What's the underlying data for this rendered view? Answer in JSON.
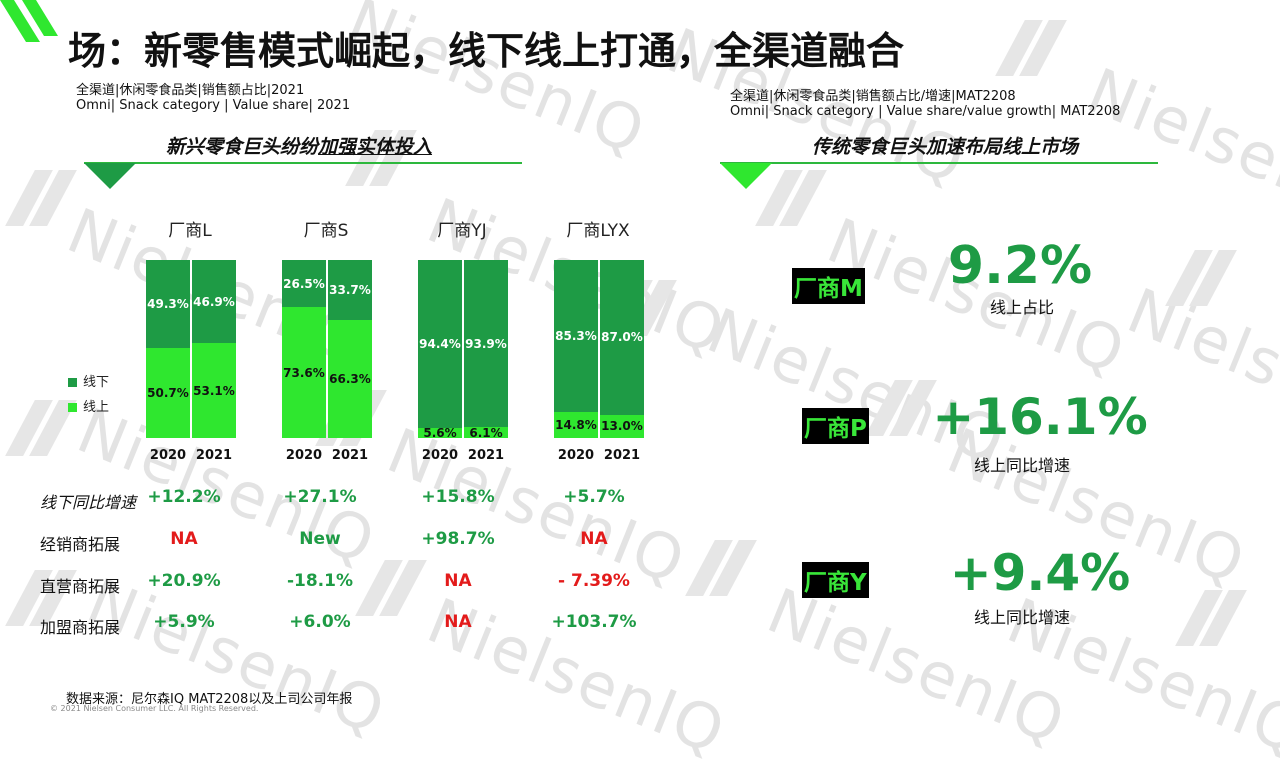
{
  "title": "场：新零售模式崛起，线下线上打通，全渠道融合",
  "left": {
    "subtitle_cn": "全渠道|休闲零食品类|销售额占比|2021",
    "subtitle_en": "Omni| Snack category | Value share| 2021",
    "section_title_a": "新兴零食巨头纷纷",
    "section_title_b": "加强实体投入"
  },
  "right": {
    "subtitle_cn": "全渠道|休闲零食品类|销售额占比/增速|MAT2208",
    "subtitle_en": "Omni| Snack category | Value share/value growth| MAT2208",
    "section_title": "传统零食巨头加速布局线上市场",
    "kpis": [
      {
        "vendor": "厂商M",
        "value": "9.2%",
        "caption": "线上占比"
      },
      {
        "vendor": "厂商P",
        "value": "+16.1%",
        "caption": "线上同比增速"
      },
      {
        "vendor": "厂商Y",
        "value": "+9.4%",
        "caption": "线上同比增速"
      }
    ]
  },
  "chart_data": {
    "type": "bar",
    "stacked": true,
    "percent_stacked": true,
    "groups": [
      "厂商L",
      "厂商S",
      "厂商YJ",
      "厂商LYX"
    ],
    "categories": [
      "2020",
      "2021"
    ],
    "series": [
      {
        "name": "线下",
        "color": "#1e9b45",
        "values": [
          [
            49.3,
            46.9
          ],
          [
            26.5,
            33.7
          ],
          [
            94.4,
            93.9
          ],
          [
            85.3,
            87.0
          ]
        ],
        "labels": [
          [
            "49.3%",
            "46.9%"
          ],
          [
            "26.5%",
            "33.7%"
          ],
          [
            "94.4%",
            "93.9%"
          ],
          [
            "85.3%",
            "87.0%"
          ]
        ]
      },
      {
        "name": "线上",
        "color": "#2fe72f",
        "values": [
          [
            50.7,
            53.1
          ],
          [
            73.6,
            66.3
          ],
          [
            5.6,
            6.1
          ],
          [
            14.8,
            13.0
          ]
        ],
        "labels": [
          [
            "50.7%",
            "53.1%"
          ],
          [
            "73.6%",
            "66.3%"
          ],
          [
            "5.6%",
            "6.1%"
          ],
          [
            "14.8%",
            "13.0%"
          ]
        ]
      }
    ],
    "ylim": [
      0,
      100
    ],
    "legend_position": "left"
  },
  "table": {
    "rows": [
      {
        "label": "线下同比增速",
        "italic": true,
        "cells": [
          {
            "text": "+12.2%",
            "color": "#1e9b45"
          },
          {
            "text": "+27.1%",
            "color": "#1e9b45"
          },
          {
            "text": "+15.8%",
            "color": "#1e9b45"
          },
          {
            "text": "+5.7%",
            "color": "#1e9b45"
          }
        ]
      },
      {
        "label": "经销商拓展",
        "italic": false,
        "cells": [
          {
            "text": "NA",
            "color": "#e31b1b"
          },
          {
            "text": "New",
            "color": "#1e9b45"
          },
          {
            "text": "+98.7%",
            "color": "#1e9b45"
          },
          {
            "text": "NA",
            "color": "#e31b1b"
          }
        ]
      },
      {
        "label": "直营商拓展",
        "italic": false,
        "cells": [
          {
            "text": "+20.9%",
            "color": "#1e9b45"
          },
          {
            "text": "-18.1%",
            "color": "#1e9b45"
          },
          {
            "text": "NA",
            "color": "#e31b1b"
          },
          {
            "text": "- 7.39%",
            "color": "#e31b1b"
          }
        ]
      },
      {
        "label": "加盟商拓展",
        "italic": false,
        "cells": [
          {
            "text": "+5.9%",
            "color": "#1e9b45"
          },
          {
            "text": "+6.0%",
            "color": "#1e9b45"
          },
          {
            "text": "NA",
            "color": "#e31b1b"
          },
          {
            "text": "+103.7%",
            "color": "#1e9b45"
          }
        ]
      }
    ]
  },
  "footer": {
    "source": "数据来源：尼尔森IQ MAT2208以及上司公司年报",
    "copyright": "© 2021 Nielsen Consumer LLC. All Rights Reserved."
  },
  "watermark_text": "NielsenIQ"
}
